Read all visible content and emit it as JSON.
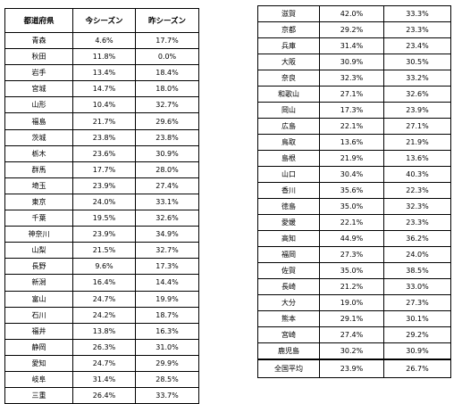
{
  "headers": {
    "prefecture": "都道府県",
    "this_season": "今シーズン",
    "last_season": "昨シーズン"
  },
  "left_rows": [
    {
      "pref": "青森",
      "this": "4.6%",
      "last": "17.7%"
    },
    {
      "pref": "秋田",
      "this": "11.8%",
      "last": "0.0%"
    },
    {
      "pref": "岩手",
      "this": "13.4%",
      "last": "18.4%"
    },
    {
      "pref": "宮城",
      "this": "14.7%",
      "last": "18.0%"
    },
    {
      "pref": "山形",
      "this": "10.4%",
      "last": "32.7%"
    },
    {
      "pref": "福島",
      "this": "21.7%",
      "last": "29.6%"
    },
    {
      "pref": "茨城",
      "this": "23.8%",
      "last": "23.8%"
    },
    {
      "pref": "栃木",
      "this": "23.6%",
      "last": "30.9%"
    },
    {
      "pref": "群馬",
      "this": "17.7%",
      "last": "28.0%"
    },
    {
      "pref": "埼玉",
      "this": "23.9%",
      "last": "27.4%"
    },
    {
      "pref": "東京",
      "this": "24.0%",
      "last": "33.1%"
    },
    {
      "pref": "千葉",
      "this": "19.5%",
      "last": "32.6%"
    },
    {
      "pref": "神奈川",
      "this": "23.9%",
      "last": "34.9%"
    },
    {
      "pref": "山梨",
      "this": "21.5%",
      "last": "32.7%"
    },
    {
      "pref": "長野",
      "this": "9.6%",
      "last": "17.3%"
    },
    {
      "pref": "新潟",
      "this": "16.4%",
      "last": "14.4%"
    },
    {
      "pref": "富山",
      "this": "24.7%",
      "last": "19.9%"
    },
    {
      "pref": "石川",
      "this": "24.2%",
      "last": "18.7%"
    },
    {
      "pref": "福井",
      "this": "13.8%",
      "last": "16.3%"
    },
    {
      "pref": "静岡",
      "this": "26.3%",
      "last": "31.0%"
    },
    {
      "pref": "愛知",
      "this": "24.7%",
      "last": "29.9%"
    },
    {
      "pref": "岐阜",
      "this": "31.4%",
      "last": "28.5%"
    },
    {
      "pref": "三重",
      "this": "26.4%",
      "last": "33.7%"
    }
  ],
  "right_rows": [
    {
      "pref": "滋賀",
      "this": "42.0%",
      "last": "33.3%"
    },
    {
      "pref": "京都",
      "this": "29.2%",
      "last": "23.3%"
    },
    {
      "pref": "兵庫",
      "this": "31.4%",
      "last": "23.4%"
    },
    {
      "pref": "大阪",
      "this": "30.9%",
      "last": "30.5%"
    },
    {
      "pref": "奈良",
      "this": "32.3%",
      "last": "33.2%"
    },
    {
      "pref": "和歌山",
      "this": "27.1%",
      "last": "32.6%"
    },
    {
      "pref": "岡山",
      "this": "17.3%",
      "last": "23.9%"
    },
    {
      "pref": "広島",
      "this": "22.1%",
      "last": "27.1%"
    },
    {
      "pref": "鳥取",
      "this": "13.6%",
      "last": "21.9%"
    },
    {
      "pref": "島根",
      "this": "21.9%",
      "last": "13.6%"
    },
    {
      "pref": "山口",
      "this": "30.4%",
      "last": "40.3%"
    },
    {
      "pref": "香川",
      "this": "35.6%",
      "last": "22.3%"
    },
    {
      "pref": "徳島",
      "this": "35.0%",
      "last": "32.3%"
    },
    {
      "pref": "愛媛",
      "this": "22.1%",
      "last": "23.3%"
    },
    {
      "pref": "高知",
      "this": "44.9%",
      "last": "36.2%"
    },
    {
      "pref": "福岡",
      "this": "27.3%",
      "last": "24.0%"
    },
    {
      "pref": "佐賀",
      "this": "35.0%",
      "last": "38.5%"
    },
    {
      "pref": "長崎",
      "this": "21.2%",
      "last": "33.0%"
    },
    {
      "pref": "大分",
      "this": "19.0%",
      "last": "27.3%"
    },
    {
      "pref": "熊本",
      "this": "29.1%",
      "last": "30.1%"
    },
    {
      "pref": "宮崎",
      "this": "27.4%",
      "last": "29.2%"
    },
    {
      "pref": "鹿児島",
      "this": "30.2%",
      "last": "30.9%"
    }
  ],
  "total": {
    "pref": "全国平均",
    "this": "23.9%",
    "last": "26.7%"
  }
}
